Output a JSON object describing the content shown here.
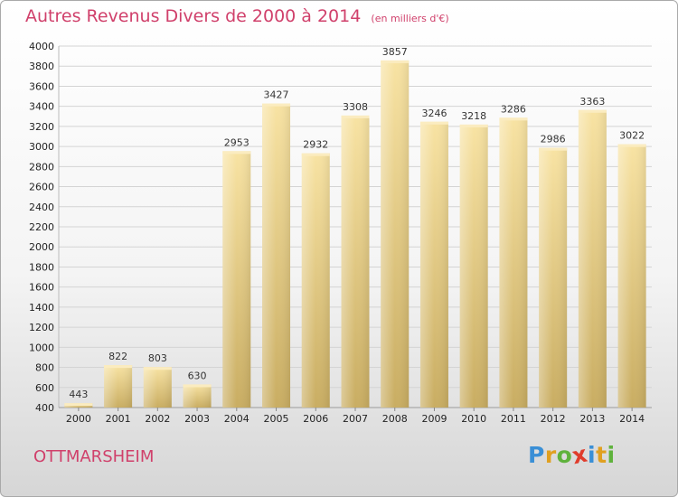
{
  "header": {
    "title": "Autres Revenus Divers de 2000 à 2014",
    "subtitle": "(en milliers d'€)"
  },
  "footer": {
    "city": "OTTMARSHEIM",
    "brand": {
      "letters": [
        "P",
        "r",
        "o",
        "x",
        "i",
        "t",
        "i"
      ],
      "colors": [
        "#3a8fd6",
        "#e0a020",
        "#5fb23c",
        "#e03c2c",
        "#3a8fd6",
        "#e0a020",
        "#5fb23c"
      ]
    }
  },
  "chart_data": {
    "type": "bar",
    "categories": [
      "2000",
      "2001",
      "2002",
      "2003",
      "2004",
      "2005",
      "2006",
      "2007",
      "2008",
      "2009",
      "2010",
      "2011",
      "2012",
      "2013",
      "2014"
    ],
    "values": [
      443,
      822,
      803,
      630,
      2953,
      3427,
      2932,
      3308,
      3857,
      3246,
      3218,
      3286,
      2986,
      3363,
      3022
    ],
    "ylim": [
      400,
      4000
    ],
    "yticks": [
      400,
      600,
      800,
      1000,
      1200,
      1400,
      1600,
      1800,
      2000,
      2200,
      2400,
      2600,
      2800,
      3000,
      3200,
      3400,
      3600,
      3800,
      4000
    ],
    "grid": true,
    "bar_color": "#e3c77a"
  }
}
